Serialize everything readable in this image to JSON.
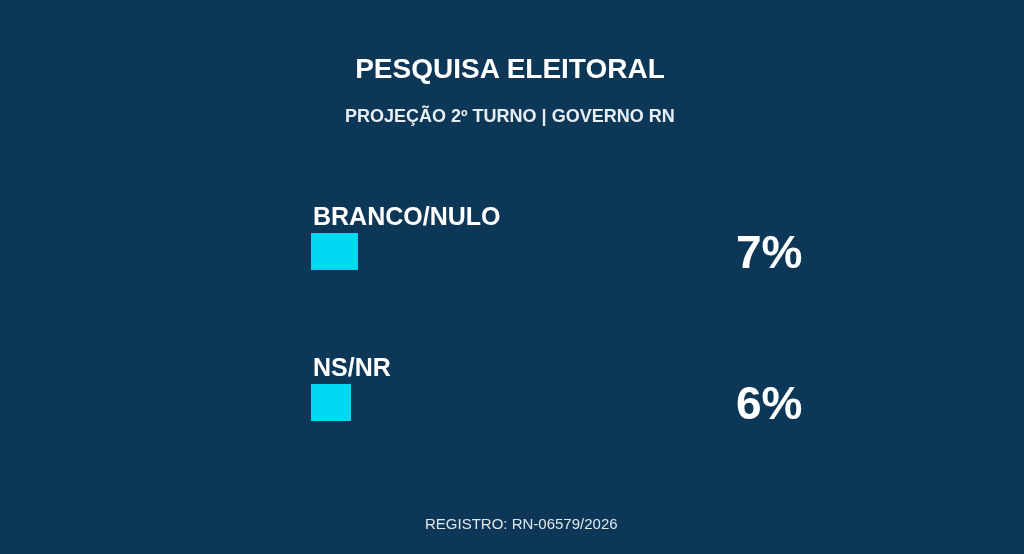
{
  "chart_data": {
    "type": "bar",
    "orientation": "horizontal",
    "title": "PESQUISA ELEITORAL",
    "subtitle": "PROJEÇÃO 2º TURNO | GOVERNO RN",
    "categories": [
      "BRANCO/NULO",
      "NS/NR"
    ],
    "values": [
      7,
      6
    ],
    "color": "#00d8f2",
    "value_labels": [
      "7%",
      "6%"
    ],
    "annotations": [
      "REGISTRO: RN-06579/2026"
    ],
    "tick_labels": "y"
  }
}
